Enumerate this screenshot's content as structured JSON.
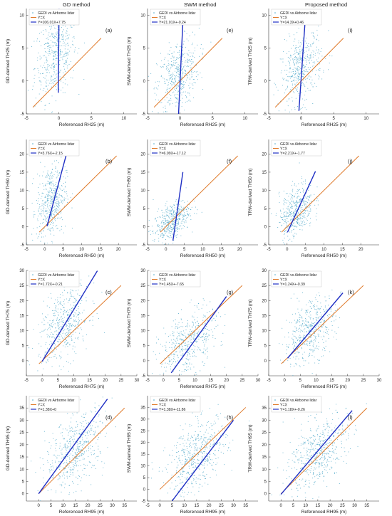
{
  "columns": [
    {
      "title": "GD method"
    },
    {
      "title": "SWM method"
    },
    {
      "title": "Proposed method"
    }
  ],
  "colors": {
    "points": "#4aa6c8",
    "identity": "#e07b2c",
    "fit": "#1f2fc4",
    "axis": "#333333"
  },
  "legend": {
    "scatter": "GEDI vs Airborne lidar",
    "identity": "Y=X"
  },
  "chart_data": [
    {
      "type": "scatter",
      "panel_label": "(a)",
      "xlabel": "Referenced RH25 (m)",
      "ylabel": "GD-derived TH25 (m)",
      "xlim": [
        -5,
        12
      ],
      "ylim": [
        -5,
        11
      ],
      "xticks": [
        -5,
        0,
        5,
        10
      ],
      "yticks": [
        -5,
        0,
        5,
        10
      ],
      "cloud": {
        "cx": -0.5,
        "cy": 4,
        "sx": 1.6,
        "sy": 3.2,
        "n": 450
      },
      "fit": {
        "label": "Y=106.01X+7.75",
        "slope": 106.01,
        "intercept": 7.75,
        "x": [
          -0.09,
          0.03
        ]
      },
      "identity_x": [
        -4,
        6.5
      ]
    },
    {
      "type": "scatter",
      "panel_label": "(e)",
      "xlabel": "Referenced RH25 (m)",
      "ylabel": "SWM-derived TH25 (m)",
      "xlim": [
        -5,
        12
      ],
      "ylim": [
        -5,
        11
      ],
      "xticks": [
        -5,
        0,
        5,
        10
      ],
      "yticks": [
        -5,
        0,
        5,
        10
      ],
      "cloud": {
        "cx": -0.3,
        "cy": 0.8,
        "sx": 1.6,
        "sy": 2.6,
        "n": 450
      },
      "fit": {
        "label": "Y=21.01X+-0.24",
        "slope": 21.01,
        "intercept": -0.24,
        "x": [
          -0.23,
          0.46
        ]
      },
      "identity_x": [
        -4,
        6.5
      ]
    },
    {
      "type": "scatter",
      "panel_label": "(i)",
      "xlabel": "Referenced RH25 (m)",
      "ylabel": "TRW-derived TH25 (m)",
      "xlim": [
        -5,
        12
      ],
      "ylim": [
        -5,
        11
      ],
      "xticks": [
        -5,
        0,
        5,
        10
      ],
      "yticks": [
        -5,
        0,
        5,
        10
      ],
      "cloud": {
        "cx": 0,
        "cy": 2,
        "sx": 1.6,
        "sy": 2.6,
        "n": 450
      },
      "fit": {
        "label": "Y=14.3X+0.46",
        "slope": 14.3,
        "intercept": 0.46,
        "x": [
          -0.35,
          0.6
        ]
      },
      "identity_x": [
        -4,
        6.5
      ]
    },
    {
      "type": "scatter",
      "panel_label": "(b)",
      "xlabel": "Referenced RH50 (m)",
      "ylabel": "GD-derived TH50 (m)",
      "xlim": [
        -5,
        25
      ],
      "ylim": [
        -5,
        24
      ],
      "xticks": [
        -5,
        0,
        5,
        10,
        15,
        20
      ],
      "yticks": [
        -5,
        0,
        5,
        10,
        15,
        20
      ],
      "cloud": {
        "cx": 1.8,
        "cy": 7,
        "sx": 2,
        "sy": 5,
        "n": 480
      },
      "fit": {
        "label": "Y=3.76X+-2.15",
        "slope": 3.76,
        "intercept": -2.15,
        "x": [
          0.6,
          6.8
        ]
      },
      "identity_x": [
        -1.5,
        19.5
      ]
    },
    {
      "type": "scatter",
      "panel_label": "(f)",
      "xlabel": "Referenced RH50 (m)",
      "ylabel": "SWM-derived TH50 (m)",
      "xlim": [
        -5,
        25
      ],
      "ylim": [
        -5,
        24
      ],
      "xticks": [
        -5,
        0,
        5,
        10,
        15,
        20
      ],
      "yticks": [
        -5,
        0,
        5,
        10,
        15,
        20
      ],
      "cloud": {
        "cx": 1.5,
        "cy": 1.5,
        "sx": 2.5,
        "sy": 2.5,
        "n": 450
      },
      "fit": {
        "label": "Y=6.99X+-17.12",
        "slope": 6.99,
        "intercept": -17.12,
        "x": [
          1.9,
          4.6
        ]
      },
      "identity_x": [
        -1.5,
        19.5
      ]
    },
    {
      "type": "scatter",
      "panel_label": "(j)",
      "xlabel": "Referenced RH50 (m)",
      "ylabel": "TRW-derived TH50 (m)",
      "xlim": [
        -5,
        25
      ],
      "ylim": [
        -5,
        24
      ],
      "xticks": [
        -5,
        0,
        5,
        10,
        15,
        20
      ],
      "yticks": [
        -5,
        0,
        5,
        10,
        15,
        20
      ],
      "cloud": {
        "cx": 2.5,
        "cy": 4.5,
        "sx": 2.3,
        "sy": 3.5,
        "n": 450
      },
      "fit": {
        "label": "Y=2.21X+-1.77",
        "slope": 2.21,
        "intercept": -1.77,
        "x": [
          0.1,
          7.7
        ]
      },
      "identity_x": [
        -1.5,
        19.5
      ]
    },
    {
      "type": "scatter",
      "panel_label": "(c)",
      "xlabel": "Referenced RH75 (m)",
      "ylabel": "GD-derived TH75 (m)",
      "xlim": [
        -5,
        30
      ],
      "ylim": [
        -5,
        30
      ],
      "xticks": [
        -5,
        0,
        5,
        10,
        15,
        20,
        25,
        30
      ],
      "yticks": [
        0,
        5,
        10,
        15,
        20,
        25,
        30
      ],
      "cloud": {
        "cx": 7,
        "cy": 12,
        "sx": 4,
        "sy": 6,
        "n": 480
      },
      "fit": {
        "label": "Y=1.72X+-0.21",
        "slope": 1.72,
        "intercept": -0.21,
        "x": [
          0,
          17.5
        ]
      },
      "identity_x": [
        -1,
        25
      ]
    },
    {
      "type": "scatter",
      "panel_label": "(g)",
      "xlabel": "Referenced RH75 (m)",
      "ylabel": "SWM-derived TH75 (m)",
      "xlim": [
        -5,
        30
      ],
      "ylim": [
        -5,
        30
      ],
      "xticks": [
        -5,
        0,
        5,
        10,
        15,
        20,
        25,
        30
      ],
      "yticks": [
        -5,
        0,
        5,
        10,
        15,
        20,
        25,
        30
      ],
      "cloud": {
        "cx": 8,
        "cy": 6,
        "sx": 4.5,
        "sy": 5,
        "n": 480
      },
      "fit": {
        "label": "Y=1.45X+-7.65",
        "slope": 1.45,
        "intercept": -7.65,
        "x": [
          2.5,
          20
        ]
      },
      "identity_x": [
        -1,
        25
      ]
    },
    {
      "type": "scatter",
      "panel_label": "(k)",
      "xlabel": "Referenced RH75 (m)",
      "ylabel": "TRW-derived TH75 (m)",
      "xlim": [
        -5,
        30
      ],
      "ylim": [
        -5,
        30
      ],
      "xticks": [
        -5,
        0,
        5,
        10,
        15,
        20,
        25,
        30
      ],
      "yticks": [
        0,
        5,
        10,
        15,
        20,
        25,
        30
      ],
      "cloud": {
        "cx": 8,
        "cy": 10,
        "sx": 4,
        "sy": 5,
        "n": 480
      },
      "fit": {
        "label": "Y=1.24X+-0.39",
        "slope": 1.24,
        "intercept": -0.39,
        "x": [
          1,
          18.5
        ]
      },
      "identity_x": [
        -1,
        25
      ]
    },
    {
      "type": "scatter",
      "panel_label": "(d)",
      "xlabel": "Referenced RH95 (m)",
      "ylabel": "GD-derived TH95 (m)",
      "xlim": [
        -5,
        40
      ],
      "ylim": [
        -3,
        40
      ],
      "xticks": [
        0,
        5,
        10,
        15,
        20,
        25,
        30,
        35
      ],
      "yticks": [
        0,
        5,
        10,
        15,
        20,
        25,
        30,
        35
      ],
      "cloud": {
        "cx": 15,
        "cy": 18,
        "sx": 6,
        "sy": 7,
        "n": 520
      },
      "fit": {
        "label": "Y=1.38X+0",
        "slope": 1.38,
        "intercept": 0,
        "x": [
          0,
          28
        ]
      },
      "identity_x": [
        0,
        35
      ]
    },
    {
      "type": "scatter",
      "panel_label": "(h)",
      "xlabel": "Referenced RH95 (m)",
      "ylabel": "SWM-derived TH95 (m)",
      "xlim": [
        -5,
        40
      ],
      "ylim": [
        -5,
        40
      ],
      "xticks": [
        -5,
        0,
        5,
        10,
        15,
        20,
        25,
        30,
        35
      ],
      "yticks": [
        -5,
        0,
        5,
        10,
        15,
        20,
        25,
        30,
        35
      ],
      "cloud": {
        "cx": 15,
        "cy": 14,
        "sx": 6,
        "sy": 7,
        "n": 520
      },
      "fit": {
        "label": "Y=1.38X+-11.86",
        "slope": 1.38,
        "intercept": -11.86,
        "x": [
          5,
          30
        ]
      },
      "identity_x": [
        0,
        35
      ]
    },
    {
      "type": "scatter",
      "panel_label": "(l)",
      "xlabel": "Referenced RH95 (m)",
      "ylabel": "TRW-derived TH95 (m)",
      "xlim": [
        -5,
        40
      ],
      "ylim": [
        -3,
        40
      ],
      "xticks": [
        0,
        5,
        10,
        15,
        20,
        25,
        30,
        35
      ],
      "yticks": [
        0,
        5,
        10,
        15,
        20,
        25,
        30,
        35
      ],
      "cloud": {
        "cx": 15,
        "cy": 17,
        "sx": 6,
        "sy": 6.5,
        "n": 520
      },
      "fit": {
        "label": "Y=1.18X+-0.26",
        "slope": 1.18,
        "intercept": -0.26,
        "x": [
          0,
          29
        ]
      },
      "identity_x": [
        0,
        35
      ]
    }
  ]
}
